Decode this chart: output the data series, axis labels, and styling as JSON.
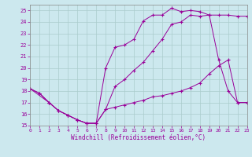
{
  "background_color": "#cce8ee",
  "grid_color": "#aacccc",
  "line_color": "#990099",
  "xlabel": "Windchill (Refroidissement éolien,°C)",
  "xlim": [
    0,
    23
  ],
  "ylim": [
    15,
    25.5
  ],
  "yticks": [
    15,
    16,
    17,
    18,
    19,
    20,
    21,
    22,
    23,
    24,
    25
  ],
  "xticks": [
    0,
    1,
    2,
    3,
    4,
    5,
    6,
    7,
    8,
    9,
    10,
    11,
    12,
    13,
    14,
    15,
    16,
    17,
    18,
    19,
    20,
    21,
    22,
    23
  ],
  "line1_x": [
    0,
    1,
    2,
    3,
    4,
    5,
    6,
    7,
    8,
    9,
    10,
    11,
    12,
    13,
    14,
    15,
    16,
    17,
    18,
    19,
    20,
    21,
    22,
    23
  ],
  "line1_y": [
    18.2,
    17.8,
    17.0,
    16.3,
    15.9,
    15.5,
    15.2,
    15.2,
    20.0,
    21.8,
    22.0,
    22.5,
    24.1,
    24.6,
    24.6,
    25.2,
    24.9,
    25.0,
    24.9,
    24.6,
    20.7,
    18.0,
    17.0,
    17.0
  ],
  "line2_x": [
    0,
    1,
    2,
    3,
    4,
    5,
    6,
    7,
    8,
    9,
    10,
    11,
    12,
    13,
    14,
    15,
    16,
    17,
    18,
    19,
    20,
    21,
    22,
    23
  ],
  "line2_y": [
    18.2,
    17.8,
    17.0,
    16.3,
    15.9,
    15.5,
    15.2,
    15.2,
    16.4,
    16.6,
    16.8,
    17.0,
    17.2,
    17.5,
    17.6,
    17.8,
    18.0,
    18.3,
    18.7,
    19.5,
    20.2,
    20.7,
    17.0,
    17.0
  ],
  "line3_x": [
    0,
    2,
    3,
    4,
    5,
    6,
    7,
    8,
    9,
    10,
    11,
    12,
    13,
    14,
    15,
    16,
    17,
    18,
    19,
    20,
    21,
    22,
    23
  ],
  "line3_y": [
    18.2,
    17.0,
    16.3,
    15.9,
    15.5,
    15.2,
    15.2,
    16.4,
    18.4,
    19.0,
    19.8,
    20.5,
    21.5,
    22.5,
    23.8,
    24.0,
    24.6,
    24.5,
    24.6,
    24.6,
    24.6,
    24.5,
    24.5
  ]
}
